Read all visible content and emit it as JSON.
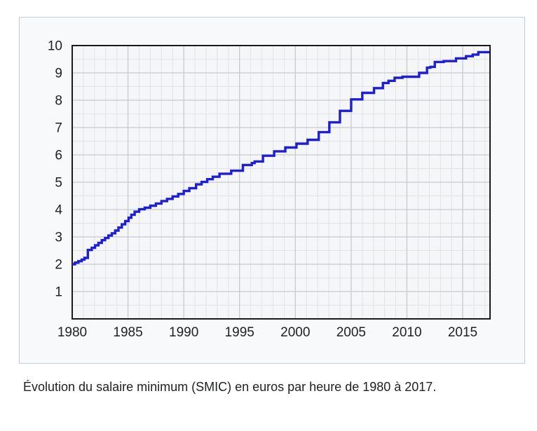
{
  "figure": {
    "caption": "Évolution du salaire minimum (SMIC) en euros par heure de 1980 à 2017."
  },
  "style": {
    "page_bg": "#ffffff",
    "figure_bg": "#f8f9fa",
    "figure_border": "#c8ccd1",
    "plot_bg": "#f5f6f8",
    "grid_minor": "#e2e3e7",
    "grid_major": "#c7c9cd",
    "plot_border": "#1a1a1c",
    "line_color": "#1e1ed2",
    "text_color": "#202122"
  },
  "chart_data": {
    "type": "line",
    "subtype": "step-after",
    "title": "",
    "xlabel": "",
    "ylabel": "",
    "grid": true,
    "legend_position": "none",
    "xlim": [
      1980,
      2017.45
    ],
    "ylim": [
      0,
      10
    ],
    "x_major_ticks": [
      1980,
      1985,
      1990,
      1995,
      2000,
      2005,
      2010,
      2015
    ],
    "y_major_ticks": [
      1,
      2,
      3,
      4,
      5,
      6,
      7,
      8,
      9,
      10
    ],
    "x_minor_step": 1,
    "y_minor_step": 0.5,
    "series": [
      {
        "name": "SMIC en euros par heure",
        "color": "#1e1ed2",
        "points": [
          [
            1980.0,
            2.0
          ],
          [
            1980.25,
            2.06
          ],
          [
            1980.55,
            2.11
          ],
          [
            1980.85,
            2.17
          ],
          [
            1981.1,
            2.23
          ],
          [
            1981.4,
            2.52
          ],
          [
            1981.75,
            2.6
          ],
          [
            1982.05,
            2.69
          ],
          [
            1982.35,
            2.78
          ],
          [
            1982.65,
            2.88
          ],
          [
            1982.95,
            2.96
          ],
          [
            1983.25,
            3.05
          ],
          [
            1983.55,
            3.13
          ],
          [
            1983.85,
            3.23
          ],
          [
            1984.15,
            3.34
          ],
          [
            1984.45,
            3.46
          ],
          [
            1984.75,
            3.58
          ],
          [
            1985.05,
            3.7
          ],
          [
            1985.3,
            3.81
          ],
          [
            1985.6,
            3.92
          ],
          [
            1986.0,
            4.01
          ],
          [
            1986.5,
            4.07
          ],
          [
            1987.0,
            4.14
          ],
          [
            1987.5,
            4.22
          ],
          [
            1988.0,
            4.31
          ],
          [
            1988.5,
            4.39
          ],
          [
            1989.0,
            4.48
          ],
          [
            1989.5,
            4.57
          ],
          [
            1990.0,
            4.68
          ],
          [
            1990.5,
            4.78
          ],
          [
            1991.1,
            4.92
          ],
          [
            1991.6,
            5.01
          ],
          [
            1992.1,
            5.11
          ],
          [
            1992.6,
            5.2
          ],
          [
            1993.2,
            5.31
          ],
          [
            1994.25,
            5.42
          ],
          [
            1995.3,
            5.63
          ],
          [
            1996.1,
            5.7
          ],
          [
            1996.35,
            5.76
          ],
          [
            1997.1,
            5.97
          ],
          [
            1998.1,
            6.13
          ],
          [
            1999.1,
            6.27
          ],
          [
            2000.1,
            6.41
          ],
          [
            2001.1,
            6.55
          ],
          [
            2002.1,
            6.83
          ],
          [
            2003.05,
            7.19
          ],
          [
            2004.0,
            7.61
          ],
          [
            2005.0,
            8.03
          ],
          [
            2006.0,
            8.27
          ],
          [
            2007.05,
            8.44
          ],
          [
            2007.85,
            8.63
          ],
          [
            2008.35,
            8.71
          ],
          [
            2008.9,
            8.82
          ],
          [
            2009.6,
            8.86
          ],
          [
            2011.1,
            9.0
          ],
          [
            2011.8,
            9.19
          ],
          [
            2012.1,
            9.22
          ],
          [
            2012.5,
            9.4
          ],
          [
            2013.3,
            9.43
          ],
          [
            2014.4,
            9.53
          ],
          [
            2015.3,
            9.61
          ],
          [
            2015.9,
            9.67
          ],
          [
            2016.4,
            9.76
          ]
        ]
      }
    ]
  }
}
